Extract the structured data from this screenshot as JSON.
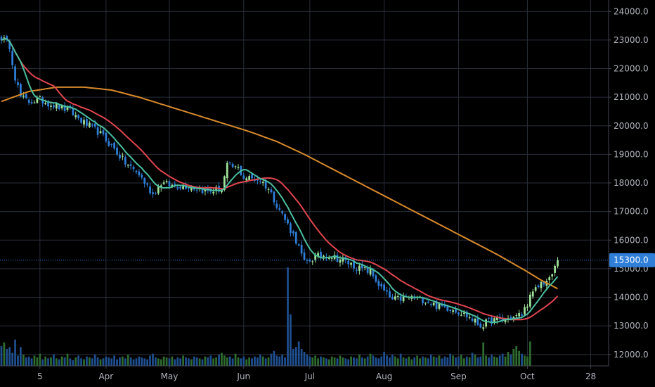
{
  "chart_data": {
    "type": "candlestick",
    "title": "",
    "xlabel": "",
    "ylabel": "",
    "ylim": [
      11600,
      24400
    ],
    "y_ticks": [
      12000,
      13000,
      14000,
      15000,
      16000,
      17000,
      18000,
      19000,
      20000,
      21000,
      22000,
      23000,
      24000
    ],
    "y_tick_labels": [
      "12000.0",
      "13000.0",
      "14000.0",
      "15000.0",
      "16000.0",
      "17000.0",
      "18000.0",
      "19000.0",
      "20000.0",
      "21000.0",
      "22000.0",
      "23000.0",
      "24000.0"
    ],
    "x_tick_labels": [
      {
        "label": "5",
        "bar": 14
      },
      {
        "label": "Apr",
        "bar": 38
      },
      {
        "label": "May",
        "bar": 61
      },
      {
        "label": "Jun",
        "bar": 88
      },
      {
        "label": "Jul",
        "bar": 112
      },
      {
        "label": "Aug",
        "bar": 139
      },
      {
        "label": "Sep",
        "bar": 166
      },
      {
        "label": "Oct",
        "bar": 191
      },
      {
        "label": "28",
        "bar": 214
      }
    ],
    "total_slots": 221,
    "current_price": 15300,
    "current_price_label": "15300.0",
    "grid": true,
    "colors": {
      "background": "#000000",
      "grid": "#2a2e39",
      "up": "#9fe29a",
      "down": "#2f7fd9",
      "vol_up": "#2e6b2f",
      "vol_down": "#1f4f8f",
      "ma_fast": "#4bbfa0",
      "ma_mid": "#e0454f",
      "ma_slow": "#d88a2c",
      "price_line": "#2f7fd9",
      "axis_text": "#b2b5be"
    },
    "anchors": [
      [
        0,
        23100
      ],
      [
        3,
        22800
      ],
      [
        5,
        21700
      ],
      [
        7,
        21000
      ],
      [
        10,
        20850
      ],
      [
        14,
        20900
      ],
      [
        20,
        20700
      ],
      [
        25,
        20500
      ],
      [
        30,
        20100
      ],
      [
        35,
        19800
      ],
      [
        40,
        19300
      ],
      [
        45,
        18700
      ],
      [
        50,
        18300
      ],
      [
        55,
        17600
      ],
      [
        58,
        18000
      ],
      [
        62,
        17900
      ],
      [
        68,
        17900
      ],
      [
        75,
        17700
      ],
      [
        80,
        17800
      ],
      [
        82,
        18600
      ],
      [
        86,
        18500
      ],
      [
        88,
        18200
      ],
      [
        94,
        18100
      ],
      [
        97,
        17800
      ],
      [
        102,
        16900
      ],
      [
        107,
        16000
      ],
      [
        110,
        15200
      ],
      [
        114,
        15400
      ],
      [
        118,
        15500
      ],
      [
        124,
        15300
      ],
      [
        130,
        15000
      ],
      [
        134,
        14900
      ],
      [
        138,
        14300
      ],
      [
        142,
        13900
      ],
      [
        148,
        14000
      ],
      [
        154,
        13900
      ],
      [
        158,
        13700
      ],
      [
        164,
        13600
      ],
      [
        170,
        13300
      ],
      [
        174,
        13000
      ],
      [
        178,
        13200
      ],
      [
        182,
        13200
      ],
      [
        186,
        13300
      ],
      [
        189,
        13400
      ],
      [
        192,
        14000
      ],
      [
        196,
        14500
      ],
      [
        199,
        14600
      ],
      [
        202,
        15250
      ]
    ],
    "ma_slow_points": [
      [
        0,
        20850
      ],
      [
        10,
        21200
      ],
      [
        20,
        21350
      ],
      [
        30,
        21350
      ],
      [
        40,
        21250
      ],
      [
        50,
        21000
      ],
      [
        60,
        20700
      ],
      [
        70,
        20400
      ],
      [
        80,
        20100
      ],
      [
        90,
        19800
      ],
      [
        100,
        19450
      ],
      [
        110,
        19000
      ],
      [
        120,
        18500
      ],
      [
        130,
        18000
      ],
      [
        140,
        17500
      ],
      [
        150,
        17000
      ],
      [
        160,
        16500
      ],
      [
        170,
        16000
      ],
      [
        180,
        15500
      ],
      [
        190,
        14950
      ],
      [
        196,
        14600
      ],
      [
        202,
        14300
      ]
    ],
    "volume_values": [
      2.1,
      2.5,
      1.8,
      2.0,
      1.4,
      2.8,
      1.1,
      2.0,
      1.2,
      0.9,
      1.0,
      0.8,
      1.1,
      0.9,
      1.3,
      0.7,
      1.0,
      0.8,
      0.9,
      1.2,
      0.8,
      0.7,
      1.0,
      0.9,
      1.3,
      0.8,
      0.6,
      0.9,
      1.1,
      0.8,
      0.7,
      1.0,
      0.9,
      0.8,
      1.2,
      0.9,
      0.7,
      0.8,
      1.0,
      0.9,
      0.8,
      1.1,
      0.7,
      0.9,
      1.0,
      0.8,
      1.2,
      0.9,
      0.7,
      0.8,
      1.0,
      0.9,
      0.8,
      0.7,
      1.1,
      1.3,
      0.9,
      0.8,
      0.7,
      1.0,
      0.9,
      0.8,
      1.0,
      0.7,
      0.9,
      0.8,
      1.1,
      0.9,
      0.8,
      0.7,
      1.0,
      0.9,
      0.8,
      0.7,
      1.0,
      0.9,
      1.1,
      0.8,
      0.9,
      1.2,
      1.4,
      1.1,
      0.9,
      1.0,
      0.8,
      1.3,
      0.9,
      0.8,
      1.0,
      0.7,
      0.9,
      0.8,
      1.0,
      0.9,
      1.2,
      1.0,
      0.8,
      0.9,
      1.3,
      1.6,
      1.1,
      1.0,
      1.2,
      0.9,
      10.5,
      5.5,
      1.8,
      2.0,
      2.6,
      1.8,
      1.5,
      1.2,
      1.0,
      0.9,
      1.1,
      0.8,
      1.0,
      0.9,
      0.8,
      0.7,
      1.0,
      0.9,
      0.8,
      1.1,
      0.9,
      0.8,
      0.7,
      1.0,
      0.9,
      0.8,
      1.2,
      0.9,
      0.8,
      1.0,
      1.3,
      1.1,
      0.9,
      0.8,
      1.0,
      1.5,
      1.1,
      0.9,
      1.2,
      1.0,
      0.8,
      1.3,
      0.9,
      0.8,
      1.0,
      0.7,
      0.9,
      1.1,
      0.8,
      1.0,
      0.9,
      0.8,
      1.2,
      1.0,
      0.9,
      1.1,
      0.8,
      1.0,
      0.9,
      1.3,
      1.1,
      0.9,
      1.0,
      1.2,
      0.8,
      1.0,
      0.9,
      1.4,
      1.2,
      0.9,
      1.0,
      2.5,
      1.1,
      0.9,
      1.2,
      1.0,
      0.9,
      1.1,
      1.3,
      1.0,
      1.5,
      1.2,
      1.8,
      2.1,
      1.6,
      1.3,
      1.1,
      1.0,
      2.6
    ]
  }
}
